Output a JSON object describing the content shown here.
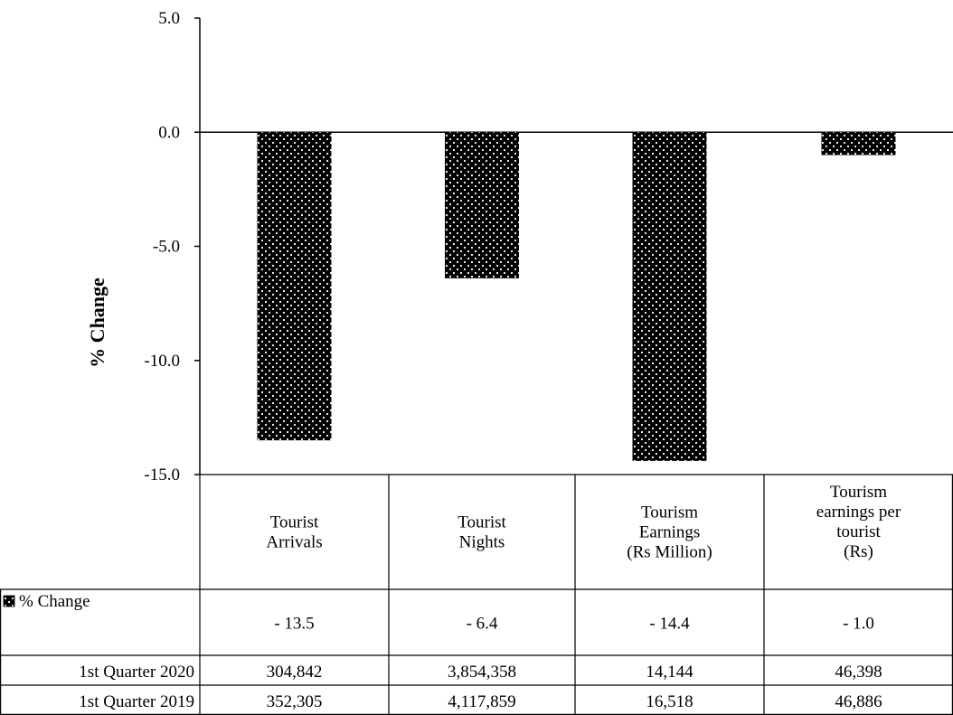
{
  "chart_data": {
    "type": "bar",
    "ylabel": "% Change",
    "ylim": [
      -15.0,
      5.0
    ],
    "yticks": [
      "5.0",
      "0.0",
      "-5.0",
      "-10.0",
      "-15.0"
    ],
    "categories": [
      [
        "Tourist",
        "Arrivals"
      ],
      [
        "Tourist",
        "Nights"
      ],
      [
        "Tourism",
        "Earnings",
        "(Rs Million)"
      ],
      [
        "Tourism",
        "earnings per",
        "tourist",
        "(Rs)"
      ]
    ],
    "series": [
      {
        "name": "% Change",
        "values": [
          -13.5,
          -6.4,
          -14.4,
          -1.0
        ]
      }
    ],
    "grid": false,
    "legend": "table",
    "bar_color": "#000000",
    "dot_color": "#ffffff"
  },
  "table": {
    "rows": [
      {
        "label": "% Change",
        "values": [
          "- 13.5",
          "- 6.4",
          "- 14.4",
          "- 1.0"
        ],
        "legend_key": true
      },
      {
        "label": "1st Quarter 2020",
        "values": [
          "304,842",
          "3,854,358",
          "14,144",
          "46,398"
        ],
        "legend_key": false
      },
      {
        "label": "1st Quarter 2019",
        "values": [
          "352,305",
          "4,117,859",
          "16,518",
          "46,886"
        ],
        "legend_key": false
      }
    ]
  }
}
